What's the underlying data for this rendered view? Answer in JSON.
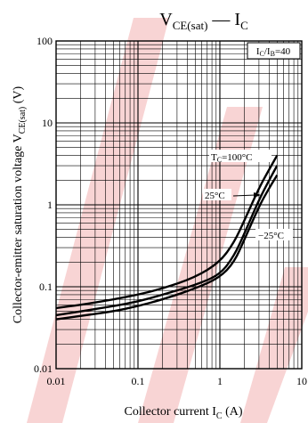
{
  "chart_data": {
    "type": "line",
    "title_base": "V",
    "title_sub": "CE(sat)",
    "title_mid": " — I",
    "title_sub2": "C",
    "xlabel_base": "Collector current  I",
    "xlabel_sub": "C",
    "xlabel_unit": "  (A)",
    "ylabel_base": "Collector-emitter saturation voltage  V",
    "ylabel_sub": "CE(sat)",
    "ylabel_unit": "  (V)",
    "x_scale": "log",
    "y_scale": "log",
    "xlim": [
      0.01,
      10
    ],
    "ylim": [
      0.01,
      100
    ],
    "x_ticks": [
      0.01,
      0.1,
      1,
      10
    ],
    "x_tick_labels": [
      "0.01",
      "0.1",
      "1",
      "10"
    ],
    "y_ticks": [
      0.01,
      0.1,
      1,
      10,
      100
    ],
    "y_tick_labels": [
      "0.01",
      "0.1",
      "1",
      "10",
      "100"
    ],
    "grid": true,
    "condition_base": "I",
    "condition_sub1": "C",
    "condition_mid": "/I",
    "condition_sub2": "B",
    "condition_value": "=40",
    "series": [
      {
        "name": "Tc=100°C",
        "x": [
          0.01,
          0.02,
          0.05,
          0.1,
          0.2,
          0.5,
          1,
          1.5,
          2,
          3,
          4,
          5
        ],
        "y": [
          0.055,
          0.06,
          0.07,
          0.08,
          0.095,
          0.13,
          0.2,
          0.35,
          0.65,
          1.6,
          2.7,
          4.0
        ]
      },
      {
        "name": "25°C",
        "x": [
          0.01,
          0.02,
          0.05,
          0.1,
          0.2,
          0.5,
          1,
          1.5,
          2,
          3,
          4,
          5
        ],
        "y": [
          0.045,
          0.05,
          0.058,
          0.066,
          0.08,
          0.105,
          0.14,
          0.24,
          0.45,
          1.15,
          2.0,
          3.0
        ]
      },
      {
        "name": "−25°C",
        "x": [
          0.01,
          0.02,
          0.05,
          0.1,
          0.2,
          0.5,
          1,
          1.5,
          2,
          3,
          4,
          5
        ],
        "y": [
          0.04,
          0.044,
          0.05,
          0.058,
          0.07,
          0.095,
          0.13,
          0.2,
          0.38,
          0.95,
          1.6,
          2.3
        ]
      }
    ]
  },
  "series_labels": {
    "s100_base": "T",
    "s100_sub": "C",
    "s100_value": "=100°C",
    "s25": "25°C",
    "sm25": "−25°C"
  },
  "colors": {
    "curve": "#000000",
    "grid": "#000000",
    "watermark": "#f3b1b1"
  }
}
